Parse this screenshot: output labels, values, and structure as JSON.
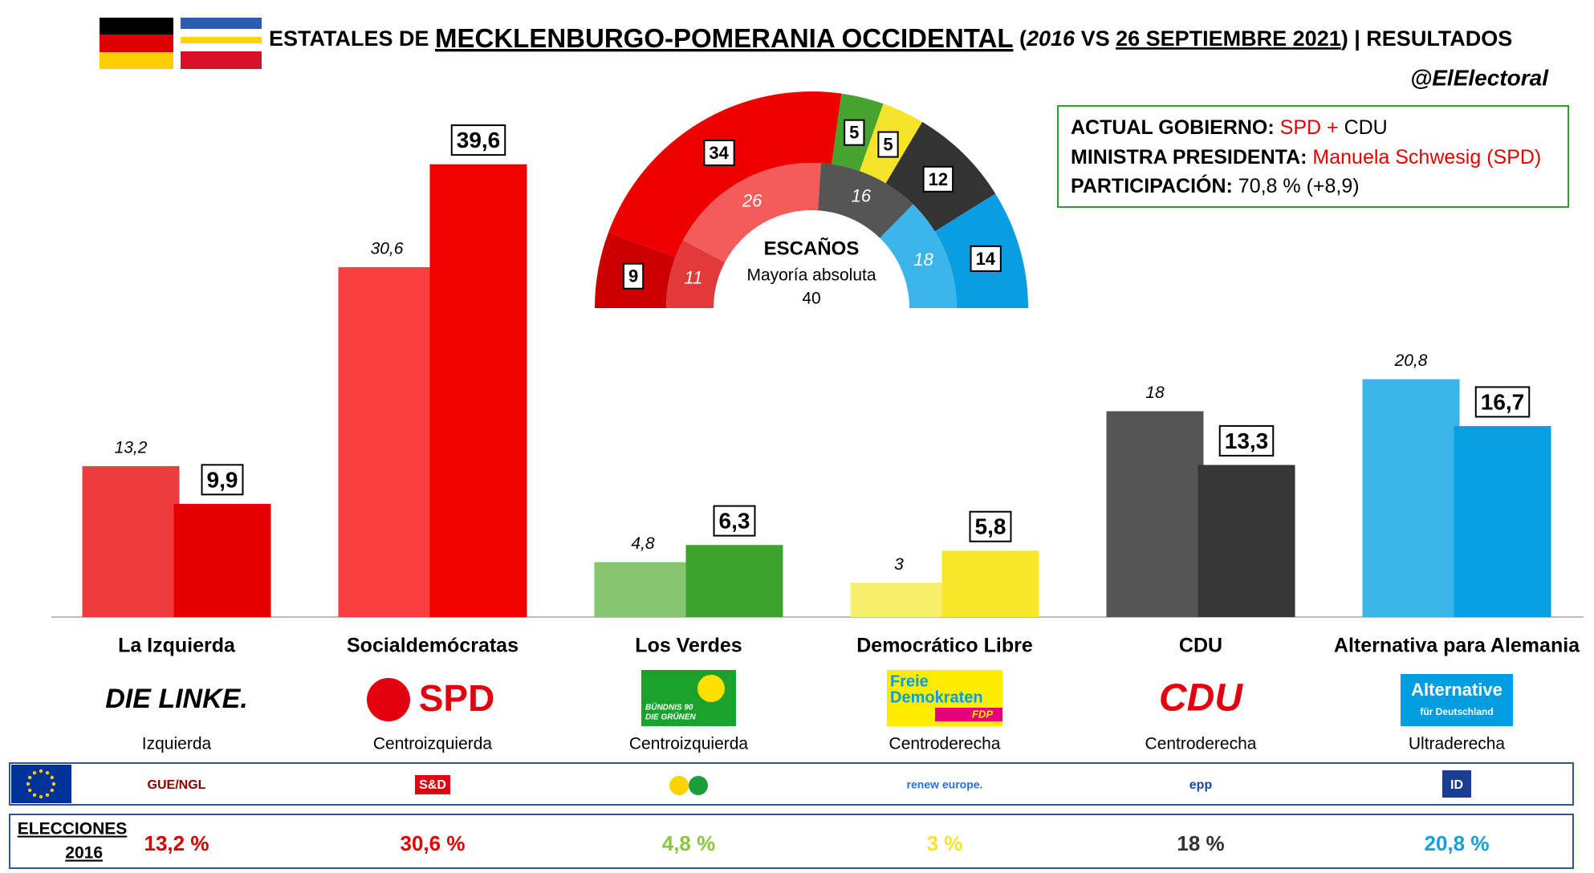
{
  "header": {
    "title": [
      "ESTATALES DE ",
      "MECKLENBURGO-POMERANIA OCCIDENTAL",
      " (",
      "2016",
      " VS ",
      "26 SEPTIEMBRE 2021",
      ") | RESULTADOS"
    ],
    "handle": "@ElElectoral"
  },
  "info": {
    "rows": [
      [
        "ACTUAL GOBIERNO:",
        "SPD",
        "+",
        "CDU"
      ],
      [
        "MINISTRA PRESIDENTA:",
        "Manuela Schwesig (SPD)"
      ],
      [
        "PARTICIPACIÓN:",
        "70,8 % (+8,9)"
      ]
    ]
  },
  "chart_data": [
    {
      "type": "bar",
      "categories": [
        "La Izquierda",
        "Socialdemócratas",
        "Los Verdes",
        "Democrático Libre",
        "CDU",
        "Alternativa para Alemania"
      ],
      "series": [
        {
          "colors": [
            "#ef3b3b",
            "#f73f3f",
            "#86c66e",
            "#f6ee6c",
            "#555555",
            "#3bb4e8"
          ],
          "values": [
            13.2,
            30.6,
            4.8,
            3,
            18,
            20.8
          ],
          "value_labels": [
            "13,2",
            "30,6",
            "4,8",
            "3",
            "18",
            "20,8"
          ]
        },
        {
          "colors": [
            "#e50000",
            "#f00000",
            "#3ea32c",
            "#f9e82a",
            "#363636",
            "#08a0e2"
          ],
          "values": [
            9.9,
            39.6,
            6.3,
            5.8,
            13.3,
            16.7
          ],
          "value_labels": [
            "9,9",
            "39,6",
            "6,3",
            "5,8",
            "13,3",
            "16,7"
          ]
        }
      ]
    },
    {
      "type": "donut",
      "title": "ESCAÑOS",
      "subtitle": "Mayoría absoluta",
      "majority": 40,
      "series": [
        {
          "colors": [
            "#cc0000",
            "#ee0000",
            "#46a32d",
            "#f5e42a",
            "#333333",
            "#0a9ee0"
          ],
          "values": [
            9,
            34,
            5,
            5,
            12,
            14
          ]
        },
        {
          "colors": [
            "#e23a3a",
            "#f45b5b",
            "#555555",
            "#3cb6ea"
          ],
          "values": [
            11,
            26,
            16,
            18
          ]
        }
      ]
    }
  ],
  "parties": [
    {
      "logo": [
        "DIE LINKE."
      ],
      "ideology": "Izquierda",
      "eu_group": "GUE/NGL",
      "result_2016": "13,2 %",
      "color": "#d40000"
    },
    {
      "logo": [
        "SPD"
      ],
      "ideology": "Centroizquierda",
      "eu_group": "S&D",
      "result_2016": "30,6 %",
      "color": "#e30000"
    },
    {
      "logo": [
        "BÜNDNIS 90",
        "DIE GRÜNEN"
      ],
      "ideology": "Centroizquierda",
      "result_2016": "4,8 %",
      "color": "#8cc63e"
    },
    {
      "logo": [
        "Freie",
        "Demokraten",
        "FDP"
      ],
      "ideology": "Centroderecha",
      "eu_group": "renew europe.",
      "result_2016": "3 %",
      "color": "#f5e42a"
    },
    {
      "logo": [
        "CDU"
      ],
      "ideology": "Centroderecha",
      "eu_group": "epp",
      "result_2016": "18 %",
      "color": "#333333"
    },
    {
      "logo": [
        "Alternative",
        "für Deutschland"
      ],
      "ideology": "Ultraderecha",
      "eu_group": "ID",
      "result_2016": "20,8 %",
      "color": "#14a0e0"
    }
  ],
  "elections_2016_label": [
    "ELECCIONES",
    "2016"
  ]
}
